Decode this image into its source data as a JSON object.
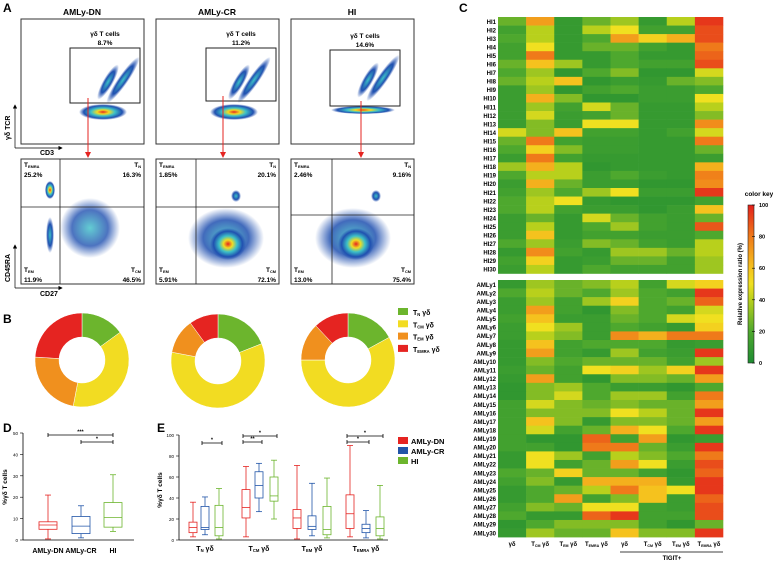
{
  "panel_labels": {
    "a": "A",
    "b": "B",
    "c": "C",
    "d": "D",
    "e": "E"
  },
  "panel_a": {
    "gate_label": "γδ T cells",
    "top_x_axis": "CD3",
    "top_y_axis": "γδ TCR",
    "bottom_x_axis": "CD27",
    "bottom_y_axis": "CD45RA",
    "plots": [
      {
        "title": "AMLy-DN",
        "gate_pct": "8.7%",
        "temra": "25.2%",
        "tn": "16.3%",
        "tem": "11.9%",
        "tcm": "46.5%"
      },
      {
        "title": "AMLy-CR",
        "gate_pct": "11.2%",
        "temra": "1.85%",
        "tn": "20.1%",
        "tem": "5.91%",
        "tcm": "72.1%"
      },
      {
        "title": "HI",
        "gate_pct": "14.6%",
        "temra": "2.46%",
        "tn": "9.16%",
        "tem": "13.0%",
        "tcm": "75.4%"
      }
    ],
    "subset_names": {
      "temra": {
        "t": "T",
        "sub": "EMRA"
      },
      "tn": {
        "t": "T",
        "sub": "N"
      },
      "tem": {
        "t": "T",
        "sub": "EM"
      },
      "tcm": {
        "t": "T",
        "sub": "CM"
      }
    }
  },
  "colors": {
    "tn": "#6cb52d",
    "tcm": "#f2dc22",
    "tem": "#f0901e",
    "temra": "#e52421",
    "dn": "#e52421",
    "cr": "#2155a8",
    "hi": "#6cb52d"
  },
  "chart_data": [
    {
      "id": "B",
      "type": "pie",
      "legend": [
        {
          "t": "T",
          "sub": "N",
          "suffix": " γδ"
        },
        {
          "t": "T",
          "sub": "CM",
          "suffix": " γδ"
        },
        {
          "t": "T",
          "sub": "EM",
          "suffix": " γδ"
        },
        {
          "t": "T",
          "sub": "EMRA",
          "suffix": " γδ"
        }
      ],
      "legend_placement": "right",
      "donuts": [
        {
          "group": "AMLy-DN",
          "values": [
            15,
            38,
            23,
            24
          ]
        },
        {
          "group": "AMLy-CR",
          "values": [
            19,
            59,
            12,
            10
          ]
        },
        {
          "group": "HI",
          "values": [
            17,
            58,
            13,
            12
          ]
        }
      ]
    },
    {
      "id": "D",
      "type": "box",
      "ylabel": "%γδ T cells",
      "ylim": [
        0,
        50
      ],
      "yticks": [
        0,
        10,
        20,
        30,
        40,
        50
      ],
      "categories": [
        "AMLy-DN",
        "AMLy-CR",
        "HI"
      ],
      "boxes": [
        {
          "min": 0.5,
          "q1": 5,
          "median": 7,
          "q3": 8.5,
          "max": 21
        },
        {
          "min": 1,
          "q1": 3,
          "median": 6.5,
          "q3": 11,
          "max": 16
        },
        {
          "min": 4,
          "q1": 6,
          "median": 10.5,
          "q3": 17.5,
          "max": 30.5
        }
      ],
      "significance": [
        {
          "from": 0,
          "to": 2,
          "label": "***"
        },
        {
          "from": 1,
          "to": 2,
          "label": "*"
        }
      ]
    },
    {
      "id": "E",
      "type": "box",
      "ylabel": "%γδ T cells",
      "ylim": [
        0,
        100
      ],
      "yticks": [
        0,
        20,
        40,
        60,
        80,
        100
      ],
      "categories": [
        {
          "t": "T",
          "sub": "N",
          "suffix": " γδ"
        },
        {
          "t": "T",
          "sub": "CM",
          "suffix": " γδ"
        },
        {
          "t": "T",
          "sub": "EM",
          "suffix": " γδ"
        },
        {
          "t": "T",
          "sub": "EMRA",
          "suffix": " γδ"
        }
      ],
      "series": [
        {
          "name": "AMLy-DN",
          "boxes": [
            {
              "min": 3,
              "q1": 7,
              "median": 12,
              "q3": 17,
              "max": 36
            },
            {
              "min": 3,
              "q1": 21,
              "median": 31,
              "q3": 48,
              "max": 70
            },
            {
              "min": 1,
              "q1": 11,
              "median": 21,
              "q3": 29,
              "max": 71
            },
            {
              "min": 3,
              "q1": 11,
              "median": 25,
              "q3": 43,
              "max": 90
            }
          ]
        },
        {
          "name": "AMLy-CR",
          "boxes": [
            {
              "min": 5,
              "q1": 10,
              "median": 12,
              "q3": 32,
              "max": 41
            },
            {
              "min": 27,
              "q1": 40,
              "median": 52,
              "q3": 65,
              "max": 73
            },
            {
              "min": 4,
              "q1": 10,
              "median": 13,
              "q3": 23,
              "max": 54
            },
            {
              "min": 2,
              "q1": 7,
              "median": 11,
              "q3": 15,
              "max": 28
            }
          ]
        },
        {
          "name": "HI",
          "boxes": [
            {
              "min": 1,
              "q1": 4,
              "median": 12,
              "q3": 33,
              "max": 49
            },
            {
              "min": 20,
              "q1": 37,
              "median": 42,
              "q3": 60,
              "max": 76
            },
            {
              "min": 2,
              "q1": 5,
              "median": 10,
              "q3": 32,
              "max": 59
            },
            {
              "min": 1,
              "q1": 4,
              "median": 11,
              "q3": 22,
              "max": 52
            }
          ]
        }
      ],
      "legend_placement": "top-right",
      "significance": [
        {
          "category": 0,
          "from": 1,
          "to": 2,
          "label": "*"
        },
        {
          "category": 1,
          "from": 0,
          "to": 2,
          "label": "*"
        },
        {
          "category": 1,
          "from": 0,
          "to": 1,
          "label": "**"
        },
        {
          "category": 3,
          "from": 0,
          "to": 2,
          "label": "*"
        },
        {
          "category": 3,
          "from": 0,
          "to": 1,
          "label": "*"
        }
      ]
    },
    {
      "id": "C",
      "type": "heatmap",
      "columns": [
        {
          "t": "γδ",
          "sub": ""
        },
        {
          "t": "T",
          "sub": "CM",
          "suffix": " γδ"
        },
        {
          "t": "T",
          "sub": "EM",
          "suffix": " γδ"
        },
        {
          "t": "T",
          "sub": "EMRA",
          "suffix": " γδ"
        },
        {
          "t": "γδ",
          "sub": ""
        },
        {
          "t": "T",
          "sub": "CM",
          "suffix": " γδ"
        },
        {
          "t": "T",
          "sub": "EM",
          "suffix": " γδ"
        },
        {
          "t": "T",
          "sub": "EMRA",
          "suffix": " γδ"
        }
      ],
      "column_group": "TIGIT+",
      "color_key_title": "color key",
      "color_key_label": "Relative expression ratio (%)",
      "color_key_ticks": [
        0,
        20,
        40,
        60,
        80,
        100
      ],
      "hi_rows": [
        {
          "label": "HI1",
          "v": [
            25,
            70,
            10,
            25,
            35,
            10,
            40,
            95
          ]
        },
        {
          "label": "HI2",
          "v": [
            15,
            40,
            10,
            40,
            50,
            15,
            15,
            90
          ]
        },
        {
          "label": "HI3",
          "v": [
            20,
            40,
            10,
            20,
            70,
            55,
            65,
            90
          ]
        },
        {
          "label": "HI4",
          "v": [
            15,
            50,
            10,
            25,
            25,
            15,
            10,
            80
          ]
        },
        {
          "label": "HI5",
          "v": [
            15,
            80,
            10,
            10,
            20,
            10,
            10,
            85
          ]
        },
        {
          "label": "HI6",
          "v": [
            25,
            60,
            35,
            10,
            20,
            15,
            15,
            90
          ]
        },
        {
          "label": "HI7",
          "v": [
            20,
            35,
            8,
            20,
            30,
            8,
            8,
            45
          ]
        },
        {
          "label": "HI8",
          "v": [
            25,
            40,
            60,
            8,
            12,
            10,
            25,
            30
          ]
        },
        {
          "label": "HI9",
          "v": [
            12,
            35,
            8,
            15,
            20,
            12,
            12,
            20
          ]
        },
        {
          "label": "HI10",
          "v": [
            12,
            65,
            30,
            8,
            8,
            12,
            12,
            50
          ]
        },
        {
          "label": "HI11",
          "v": [
            12,
            35,
            15,
            45,
            25,
            10,
            10,
            40
          ]
        },
        {
          "label": "HI12",
          "v": [
            12,
            45,
            12,
            15,
            25,
            10,
            10,
            30
          ]
        },
        {
          "label": "HI13",
          "v": [
            12,
            30,
            12,
            50,
            50,
            10,
            10,
            75
          ]
        },
        {
          "label": "HI14",
          "v": [
            45,
            30,
            60,
            15,
            15,
            10,
            15,
            45
          ]
        },
        {
          "label": "HI15",
          "v": [
            25,
            80,
            15,
            12,
            12,
            10,
            10,
            80
          ]
        },
        {
          "label": "HI16",
          "v": [
            20,
            55,
            30,
            12,
            12,
            10,
            10,
            25
          ]
        },
        {
          "label": "HI17",
          "v": [
            12,
            80,
            15,
            10,
            10,
            10,
            10,
            12
          ]
        },
        {
          "label": "HI18",
          "v": [
            35,
            65,
            40,
            8,
            10,
            10,
            10,
            65
          ]
        },
        {
          "label": "HI19",
          "v": [
            20,
            40,
            40,
            12,
            20,
            12,
            10,
            78
          ]
        },
        {
          "label": "HI20",
          "v": [
            12,
            65,
            25,
            12,
            12,
            8,
            8,
            75
          ]
        },
        {
          "label": "HI21",
          "v": [
            15,
            35,
            20,
            35,
            50,
            12,
            12,
            95
          ]
        },
        {
          "label": "HI22",
          "v": [
            20,
            40,
            50,
            10,
            8,
            8,
            8,
            15
          ]
        },
        {
          "label": "HI23",
          "v": [
            20,
            40,
            15,
            12,
            12,
            8,
            12,
            60
          ]
        },
        {
          "label": "HI24",
          "v": [
            12,
            25,
            10,
            45,
            25,
            15,
            12,
            25
          ]
        },
        {
          "label": "HI25",
          "v": [
            12,
            40,
            10,
            20,
            35,
            15,
            12,
            88
          ]
        },
        {
          "label": "HI26",
          "v": [
            12,
            60,
            10,
            15,
            15,
            12,
            12,
            20
          ]
        },
        {
          "label": "HI27",
          "v": [
            20,
            35,
            12,
            30,
            25,
            15,
            12,
            40
          ]
        },
        {
          "label": "HI28",
          "v": [
            10,
            75,
            15,
            10,
            35,
            35,
            25,
            40
          ]
        },
        {
          "label": "HI29",
          "v": [
            15,
            55,
            10,
            12,
            25,
            25,
            15,
            35
          ]
        },
        {
          "label": "HI30",
          "v": [
            12,
            40,
            10,
            20,
            15,
            15,
            15,
            35
          ]
        }
      ],
      "aml_rows": [
        {
          "label": "AMLy1",
          "v": [
            10,
            35,
            25,
            30,
            40,
            15,
            45,
            55
          ]
        },
        {
          "label": "AMLy2",
          "v": [
            20,
            40,
            25,
            20,
            35,
            20,
            15,
            95
          ]
        },
        {
          "label": "AMLy3",
          "v": [
            12,
            35,
            15,
            35,
            55,
            20,
            25,
            85
          ]
        },
        {
          "label": "AMLy4",
          "v": [
            12,
            70,
            15,
            8,
            30,
            20,
            15,
            45
          ]
        },
        {
          "label": "AMLy5",
          "v": [
            15,
            60,
            12,
            12,
            25,
            20,
            45,
            50
          ]
        },
        {
          "label": "AMLy6",
          "v": [
            12,
            50,
            35,
            12,
            20,
            15,
            10,
            55
          ]
        },
        {
          "label": "AMLy7",
          "v": [
            12,
            40,
            30,
            12,
            75,
            65,
            80,
            80
          ]
        },
        {
          "label": "AMLy8",
          "v": [
            10,
            60,
            15,
            20,
            20,
            20,
            10,
            12
          ]
        },
        {
          "label": "AMLy9",
          "v": [
            10,
            70,
            15,
            10,
            35,
            15,
            12,
            95
          ]
        },
        {
          "label": "AMLy10",
          "v": [
            10,
            30,
            20,
            25,
            25,
            25,
            15,
            35
          ]
        },
        {
          "label": "AMLy11",
          "v": [
            12,
            25,
            15,
            50,
            55,
            35,
            55,
            95
          ]
        },
        {
          "label": "AMLy12",
          "v": [
            10,
            70,
            15,
            8,
            30,
            30,
            25,
            70
          ]
        },
        {
          "label": "AMLy13",
          "v": [
            8,
            30,
            35,
            20,
            12,
            12,
            8,
            20
          ]
        },
        {
          "label": "AMLy14",
          "v": [
            8,
            30,
            45,
            20,
            35,
            35,
            15,
            80
          ]
        },
        {
          "label": "AMLy15",
          "v": [
            15,
            45,
            30,
            25,
            30,
            25,
            25,
            70
          ]
        },
        {
          "label": "AMLy16",
          "v": [
            15,
            30,
            30,
            30,
            50,
            40,
            25,
            95
          ]
        },
        {
          "label": "AMLy17",
          "v": [
            15,
            60,
            30,
            10,
            30,
            30,
            25,
            70
          ]
        },
        {
          "label": "AMLy18",
          "v": [
            15,
            45,
            15,
            25,
            65,
            50,
            20,
            95
          ]
        },
        {
          "label": "AMLy19",
          "v": [
            15,
            8,
            8,
            85,
            15,
            70,
            8,
            12
          ]
        },
        {
          "label": "AMLy20",
          "v": [
            15,
            15,
            8,
            80,
            80,
            25,
            12,
            95
          ]
        },
        {
          "label": "AMLy21",
          "v": [
            10,
            50,
            35,
            15,
            40,
            30,
            20,
            80
          ]
        },
        {
          "label": "AMLy22",
          "v": [
            10,
            50,
            15,
            25,
            70,
            50,
            12,
            90
          ]
        },
        {
          "label": "AMLy23",
          "v": [
            20,
            25,
            55,
            25,
            25,
            15,
            8,
            85
          ]
        },
        {
          "label": "AMLy24",
          "v": [
            15,
            30,
            10,
            65,
            65,
            65,
            10,
            95
          ]
        },
        {
          "label": "AMLy25",
          "v": [
            10,
            20,
            25,
            40,
            80,
            60,
            50,
            95
          ]
        },
        {
          "label": "AMLy26",
          "v": [
            10,
            20,
            70,
            15,
            30,
            60,
            12,
            85
          ]
        },
        {
          "label": "AMLy27",
          "v": [
            15,
            30,
            25,
            50,
            50,
            15,
            12,
            90
          ]
        },
        {
          "label": "AMLy28",
          "v": [
            20,
            10,
            10,
            85,
            95,
            15,
            15,
            90
          ]
        },
        {
          "label": "AMLy29",
          "v": [
            8,
            20,
            30,
            30,
            30,
            15,
            8,
            25
          ]
        },
        {
          "label": "AMLy30",
          "v": [
            10,
            35,
            25,
            25,
            60,
            30,
            30,
            95
          ]
        }
      ]
    }
  ]
}
